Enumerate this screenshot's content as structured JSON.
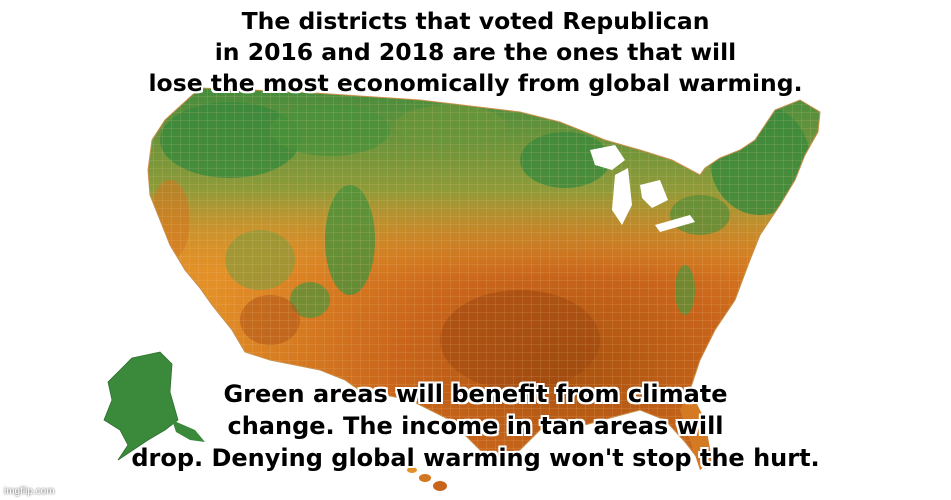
{
  "captions": {
    "top_lines": [
      "The districts that voted Republican",
      "in 2016 and 2018 are the ones that will",
      "lose the most economically from global warming."
    ],
    "bottom_lines": [
      "Green areas will benefit from climate",
      "change. The income in tan areas will",
      "drop. Denying global warming won't stop the hurt."
    ]
  },
  "watermark": "imgflip.com",
  "legend_colors": {
    "benefit": "#3c8c3e",
    "mild_benefit": "#8c9a3a",
    "mild_loss": "#e08a26",
    "loss": "#c8601a",
    "severe_loss": "#a04a10"
  }
}
